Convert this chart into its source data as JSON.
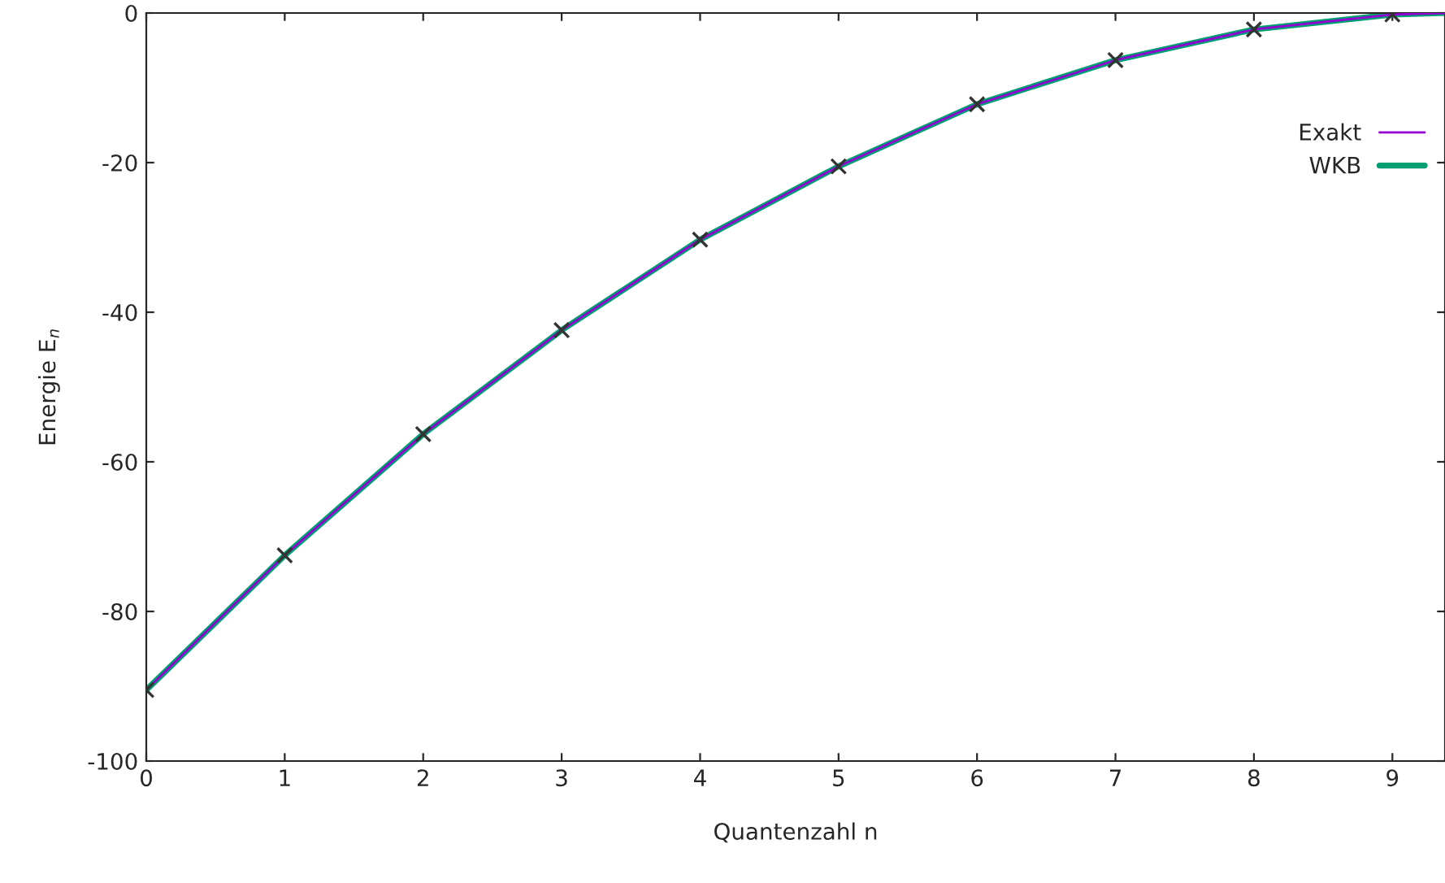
{
  "chart_data": {
    "type": "line",
    "xlabel": "Quantenzahl n",
    "ylabel": "Energie E$_{n}$",
    "xlim": [
      0,
      9.38
    ],
    "ylim": [
      -100,
      0
    ],
    "xticks": [
      0,
      1,
      2,
      3,
      4,
      5,
      6,
      7,
      8,
      9
    ],
    "yticks": [
      -100,
      -80,
      -60,
      -40,
      -20,
      0
    ],
    "grid": false,
    "legend": "top right",
    "marker": "none",
    "series": [
      {
        "name": "Exakt",
        "color": "#9400d3",
        "x": [
          0,
          1,
          2,
          3,
          4,
          5,
          6,
          7,
          8,
          9,
          9.38
        ],
        "values": [
          -90.5,
          -72.5,
          -56.3,
          -42.4,
          -30.3,
          -20.5,
          -12.2,
          -6.3,
          -2.2,
          -0.2,
          0
        ]
      },
      {
        "name": "WKB",
        "color": "#009e73",
        "x": [
          0,
          1,
          2,
          3,
          4,
          5,
          6,
          7,
          8,
          9,
          9.38
        ],
        "values": [
          -90.5,
          -72.5,
          -56.3,
          -42.4,
          -30.3,
          -20.5,
          -12.2,
          -6.3,
          -2.2,
          -0.2,
          0
        ]
      },
      {
        "type": "scatter",
        "marker": "cross",
        "color": "#333333",
        "x": [
          0,
          1,
          2,
          3,
          4,
          5,
          6,
          7,
          8,
          9
        ],
        "values": [
          -90.5,
          -72.5,
          -56.3,
          -42.4,
          -30.3,
          -20.5,
          -12.2,
          -6.3,
          -2.2,
          -0.2
        ]
      }
    ]
  }
}
